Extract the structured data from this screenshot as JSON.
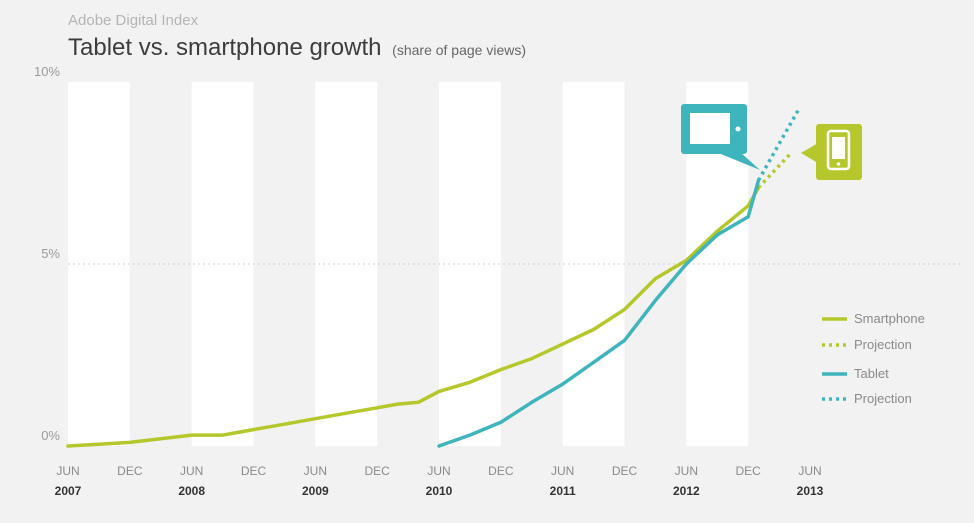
{
  "header": {
    "source": "Adobe Digital Index",
    "title": "Tablet vs. smartphone growth",
    "subtitle": "(share of page views)"
  },
  "colors": {
    "smartphone": "#b5c72a",
    "tablet": "#3eb4bd",
    "stripe": "#ffffff",
    "background": "#f2f2f2"
  },
  "icons": {
    "tablet": "tablet-icon",
    "smartphone": "smartphone-icon"
  },
  "chart_data": {
    "type": "line",
    "title": "Tablet vs. smartphone growth",
    "subtitle": "(share of page views)",
    "ylim": [
      0,
      10
    ],
    "y_ticks": [
      {
        "value": 0,
        "label": "0%"
      },
      {
        "value": 5,
        "label": "5%"
      },
      {
        "value": 10,
        "label": "10%"
      }
    ],
    "xlim": [
      "2007-06",
      "2013-06"
    ],
    "x_ticks": [
      {
        "date": "2007-06",
        "label": "JUN",
        "year": "2007"
      },
      {
        "date": "2007-12",
        "label": "DEC",
        "year": ""
      },
      {
        "date": "2008-06",
        "label": "JUN",
        "year": "2008"
      },
      {
        "date": "2008-12",
        "label": "DEC",
        "year": ""
      },
      {
        "date": "2009-06",
        "label": "JUN",
        "year": "2009"
      },
      {
        "date": "2009-12",
        "label": "DEC",
        "year": ""
      },
      {
        "date": "2010-06",
        "label": "JUN",
        "year": "2010"
      },
      {
        "date": "2010-12",
        "label": "DEC",
        "year": ""
      },
      {
        "date": "2011-06",
        "label": "JUN",
        "year": "2011"
      },
      {
        "date": "2011-12",
        "label": "DEC",
        "year": ""
      },
      {
        "date": "2012-06",
        "label": "JUN",
        "year": "2012"
      },
      {
        "date": "2012-12",
        "label": "DEC",
        "year": ""
      },
      {
        "date": "2013-06",
        "label": "JUN",
        "year": "2013"
      }
    ],
    "grid_lines": [
      5
    ],
    "legend_position": "right",
    "series": [
      {
        "name": "Smartphone",
        "key": "smartphone",
        "style": "solid",
        "points": [
          [
            "2007-06",
            0.0
          ],
          [
            "2007-09",
            0.05
          ],
          [
            "2007-12",
            0.1
          ],
          [
            "2008-03",
            0.2
          ],
          [
            "2008-06",
            0.3
          ],
          [
            "2008-09",
            0.3
          ],
          [
            "2008-12",
            0.45
          ],
          [
            "2009-03",
            0.6
          ],
          [
            "2009-06",
            0.75
          ],
          [
            "2009-09",
            0.9
          ],
          [
            "2009-12",
            1.05
          ],
          [
            "2010-02",
            1.15
          ],
          [
            "2010-04",
            1.2
          ],
          [
            "2010-06",
            1.5
          ],
          [
            "2010-09",
            1.75
          ],
          [
            "2010-12",
            2.1
          ],
          [
            "2011-03",
            2.4
          ],
          [
            "2011-06",
            2.8
          ],
          [
            "2011-09",
            3.2
          ],
          [
            "2011-12",
            3.75
          ],
          [
            "2012-03",
            4.6
          ],
          [
            "2012-06",
            5.1
          ],
          [
            "2012-09",
            5.9
          ],
          [
            "2012-12",
            6.6
          ],
          [
            "2013-01",
            7.1
          ]
        ]
      },
      {
        "name": "Projection",
        "key": "smartphone",
        "style": "dotted",
        "points": [
          [
            "2013-01",
            7.1
          ],
          [
            "2013-04",
            8.0
          ]
        ]
      },
      {
        "name": "Tablet",
        "key": "tablet",
        "style": "solid",
        "points": [
          [
            "2010-06",
            0.0
          ],
          [
            "2010-09",
            0.3
          ],
          [
            "2010-12",
            0.65
          ],
          [
            "2011-03",
            1.2
          ],
          [
            "2011-06",
            1.7
          ],
          [
            "2011-09",
            2.3
          ],
          [
            "2011-12",
            2.9
          ],
          [
            "2012-03",
            4.0
          ],
          [
            "2012-06",
            5.0
          ],
          [
            "2012-09",
            5.8
          ],
          [
            "2012-12",
            6.3
          ],
          [
            "2013-01",
            7.3
          ]
        ]
      },
      {
        "name": "Projection",
        "key": "tablet",
        "style": "dotted",
        "points": [
          [
            "2013-01",
            7.3
          ],
          [
            "2013-05",
            9.3
          ]
        ]
      }
    ],
    "legend": [
      {
        "label": "Smartphone",
        "key": "smartphone",
        "style": "solid"
      },
      {
        "label": "Projection",
        "key": "smartphone",
        "style": "dotted"
      },
      {
        "label": "Tablet",
        "key": "tablet",
        "style": "solid"
      },
      {
        "label": "Projection",
        "key": "tablet",
        "style": "dotted"
      }
    ]
  }
}
